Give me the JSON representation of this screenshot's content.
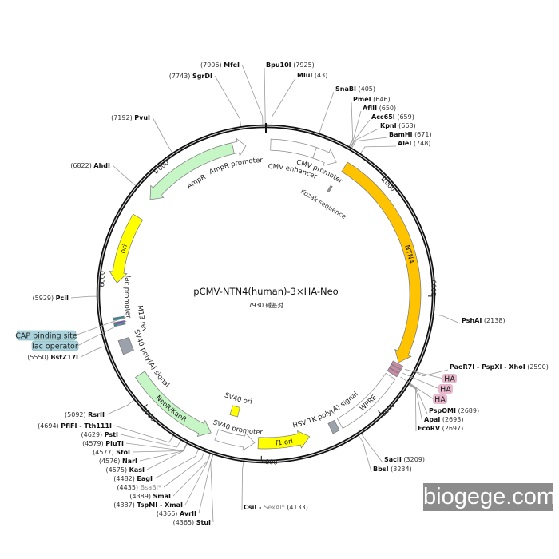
{
  "plasmid": {
    "title": "pCMV-NTN4(human)-3×HA-Neo",
    "subtitle": "7930 碱基对",
    "length": 7930
  },
  "ticks": [
    {
      "position": 1000,
      "label": "1000"
    },
    {
      "position": 2000,
      "label": "2000"
    },
    {
      "position": 3000,
      "label": "3000"
    },
    {
      "position": 4000,
      "label": "4000"
    },
    {
      "position": 5000,
      "label": "5000"
    },
    {
      "position": 6000,
      "label": "6000"
    },
    {
      "position": 7000,
      "label": "7000"
    }
  ],
  "features": [
    {
      "label": "CMV enhancer",
      "start": 40,
      "end": 420,
      "color": "#ffffff",
      "direction": "none"
    },
    {
      "label": "CMV promoter",
      "start": 420,
      "end": 620,
      "color": "#ffffff",
      "direction": "cw"
    },
    {
      "label": "NTN4",
      "start": 700,
      "end": 2585,
      "color": "#ffc300",
      "direction": "cw"
    },
    {
      "label": "",
      "start": 2595,
      "end": 2625,
      "color": "#c98aa6",
      "direction": "none"
    },
    {
      "label": "",
      "start": 2630,
      "end": 2660,
      "color": "#c98aa6",
      "direction": "none"
    },
    {
      "label": "",
      "start": 2665,
      "end": 2695,
      "color": "#c98aa6",
      "direction": "none"
    },
    {
      "label": "WPRE",
      "start": 2720,
      "end": 3310,
      "color": "#ffffff",
      "direction": "none"
    },
    {
      "label": "HSV TK poly(A) signal",
      "start": 3340,
      "end": 3400,
      "color": "#9ca2ab",
      "direction": "none"
    },
    {
      "label": "f1 ori",
      "start": 3590,
      "end": 4030,
      "color": "#ffff00",
      "direction": "ccw"
    },
    {
      "label": "SV40 promoter",
      "start": 4060,
      "end": 4390,
      "color": "#ffffff",
      "direction": "ccw"
    },
    {
      "label": "SV40 ori",
      "start": 4250,
      "end": 4330,
      "color": "#ffff00",
      "direction": "none"
    },
    {
      "label": "NeoR/KanR",
      "start": 4440,
      "end": 5230,
      "color": "#c6f5c6",
      "direction": "ccw"
    },
    {
      "label": "SV40 poly(A) signal",
      "start": 5440,
      "end": 5560,
      "color": "#9ca2ab",
      "direction": "none"
    },
    {
      "label": "",
      "start": 5680,
      "end": 5697,
      "color": "#2e8b9a",
      "direction": "none"
    },
    {
      "label": "",
      "start": 5700,
      "end": 5712,
      "color": "#8a3fd0",
      "direction": "none"
    },
    {
      "label": "",
      "start": 5730,
      "end": 5750,
      "color": "#2e8b9a",
      "direction": "none"
    },
    {
      "label": "M13 rev",
      "start": 5680,
      "end": 5712,
      "color": "none",
      "direction": "none"
    },
    {
      "label": "lac promoter",
      "start": 5760,
      "end": 6000,
      "color": "none",
      "direction": "none"
    },
    {
      "label": "ori",
      "start": 6040,
      "end": 6630,
      "color": "#ffff00",
      "direction": "ccw"
    },
    {
      "label": "AmpR",
      "start": 6810,
      "end": 7650,
      "color": "#c6f5c6",
      "direction": "ccw"
    },
    {
      "label": "AmpR promoter",
      "start": 7650,
      "end": 7760,
      "color": "#ffffff",
      "direction": "cw"
    },
    {
      "label": "Kozak sequence",
      "start": 680,
      "end": 700,
      "color": "#999999",
      "direction": "none"
    }
  ],
  "sites": [
    {
      "names": [
        "Bpu10I"
      ],
      "position": 7925
    },
    {
      "names": [
        "MluI"
      ],
      "position": 43
    },
    {
      "names": [
        "SnaBI"
      ],
      "position": 405
    },
    {
      "names": [
        "PmeI"
      ],
      "position": 646
    },
    {
      "names": [
        "AflII"
      ],
      "position": 650
    },
    {
      "names": [
        "Acc65I"
      ],
      "position": 659
    },
    {
      "names": [
        "KpnI"
      ],
      "position": 663
    },
    {
      "names": [
        "BamHI"
      ],
      "position": 671
    },
    {
      "names": [
        "AleI"
      ],
      "position": 748
    },
    {
      "names": [
        "PshAI"
      ],
      "position": 2138
    },
    {
      "names": [
        "PaeR7I",
        "PspXI",
        "XhoI"
      ],
      "position": 2590
    },
    {
      "names": [
        "PspOMI"
      ],
      "position": 2689
    },
    {
      "names": [
        "ApaI"
      ],
      "position": 2693
    },
    {
      "names": [
        "EcoRV"
      ],
      "position": 2697
    },
    {
      "names": [
        "SacII"
      ],
      "position": 3209
    },
    {
      "names": [
        "BbsI"
      ],
      "position": 3234
    },
    {
      "names": [
        "CsiI",
        "SexAI*"
      ],
      "position": 4133,
      "dim": [
        "SexAI*"
      ]
    },
    {
      "names": [
        "StuI"
      ],
      "position": 4365
    },
    {
      "names": [
        "AvrII"
      ],
      "position": 4366
    },
    {
      "names": [
        "TspMI",
        "XmaI"
      ],
      "position": 4387
    },
    {
      "names": [
        "SmaI"
      ],
      "position": 4389
    },
    {
      "names": [
        "BsaBI*"
      ],
      "position": 4435,
      "dim": [
        "BsaBI*"
      ]
    },
    {
      "names": [
        "EagI"
      ],
      "position": 4482
    },
    {
      "names": [
        "KasI"
      ],
      "position": 4575
    },
    {
      "names": [
        "NarI"
      ],
      "position": 4576
    },
    {
      "names": [
        "SfoI"
      ],
      "position": 4577
    },
    {
      "names": [
        "PluTI"
      ],
      "position": 4579
    },
    {
      "names": [
        "PstI"
      ],
      "position": 4629
    },
    {
      "names": [
        "PflFI",
        "Tth111I"
      ],
      "position": 4694
    },
    {
      "names": [
        "RsrII"
      ],
      "position": 5092
    },
    {
      "names": [
        "BstZ17I"
      ],
      "position": 5550
    },
    {
      "names": [
        "PciI"
      ],
      "position": 5929
    },
    {
      "names": [
        "AhdI"
      ],
      "position": 6822
    },
    {
      "names": [
        "PvuI"
      ],
      "position": 7192
    },
    {
      "names": [
        "SgrDI"
      ],
      "position": 7743
    },
    {
      "names": [
        "MfeI"
      ],
      "position": 7906
    }
  ],
  "callouts": [
    {
      "label": "HA",
      "position": 2610,
      "color": "#e8b9cc"
    },
    {
      "label": "HA",
      "position": 2645,
      "color": "#e8b9cc"
    },
    {
      "label": "HA",
      "position": 2680,
      "color": "#e8b9cc"
    },
    {
      "label": "CAP binding site",
      "position": 5740,
      "color": "#a8d2dc"
    },
    {
      "label": "lac operator",
      "position": 5705,
      "color": "#a8d2dc"
    }
  ],
  "watermark": "biogege.com"
}
